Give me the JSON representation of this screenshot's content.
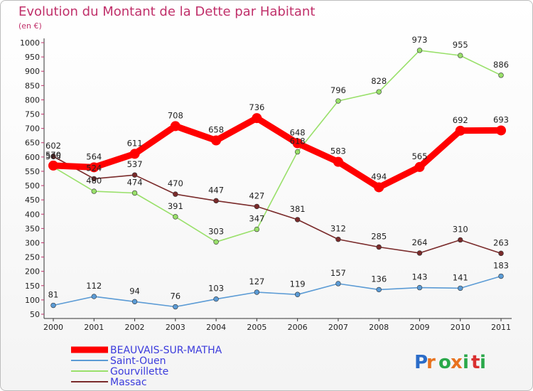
{
  "chart_data": {
    "type": "line",
    "title": "Evolution du Montant de la Dette par Habitant",
    "subtitle": "(en €)",
    "x": [
      "2000",
      "2001",
      "2002",
      "2003",
      "2004",
      "2005",
      "2006",
      "2007",
      "2008",
      "2009",
      "2010",
      "2011"
    ],
    "ylim": [
      50,
      1000
    ],
    "yticks": [
      50,
      100,
      150,
      200,
      250,
      300,
      350,
      400,
      450,
      500,
      550,
      600,
      650,
      700,
      750,
      800,
      850,
      900,
      950,
      1000
    ],
    "grid": false,
    "legend_position": "bottom-left",
    "series": [
      {
        "name": "BEAUVAIS-SUR-MATHA",
        "color": "#ff0000",
        "values": [
          570,
          564,
          611,
          708,
          658,
          736,
          648,
          583,
          494,
          565,
          692,
          693
        ]
      },
      {
        "name": "Saint-Ouen",
        "color": "#5b9bd5",
        "values": [
          81,
          112,
          94,
          76,
          103,
          127,
          119,
          157,
          136,
          143,
          141,
          183
        ]
      },
      {
        "name": "Gourvillette",
        "color": "#99e06a",
        "values": [
          565,
          480,
          474,
          391,
          303,
          347,
          618,
          796,
          828,
          973,
          955,
          886
        ]
      },
      {
        "name": "Massac",
        "color": "#7a2b2b",
        "values": [
          602,
          524,
          537,
          470,
          447,
          427,
          381,
          312,
          285,
          264,
          310,
          263
        ]
      }
    ],
    "labels": {
      "BEAUVAIS-SUR-MATHA": [
        "570",
        "564",
        "611",
        "708",
        "658",
        "736",
        "648",
        "583",
        "494",
        "565",
        "692",
        "693"
      ],
      "Saint-Ouen": [
        "81",
        "112",
        "94",
        "76",
        "103",
        "127",
        "119",
        "157",
        "136",
        "143",
        "141",
        "183"
      ],
      "Gourvillette": [
        "565",
        "480",
        "474",
        "391",
        "303",
        "347",
        "618",
        "796",
        "828",
        "973",
        "955",
        "886"
      ],
      "Massac": [
        "602",
        "524",
        "537",
        "470",
        "447",
        "427",
        "381",
        "312",
        "285",
        "264",
        "310",
        "263"
      ]
    }
  },
  "logo": {
    "text": "Proxiti"
  }
}
